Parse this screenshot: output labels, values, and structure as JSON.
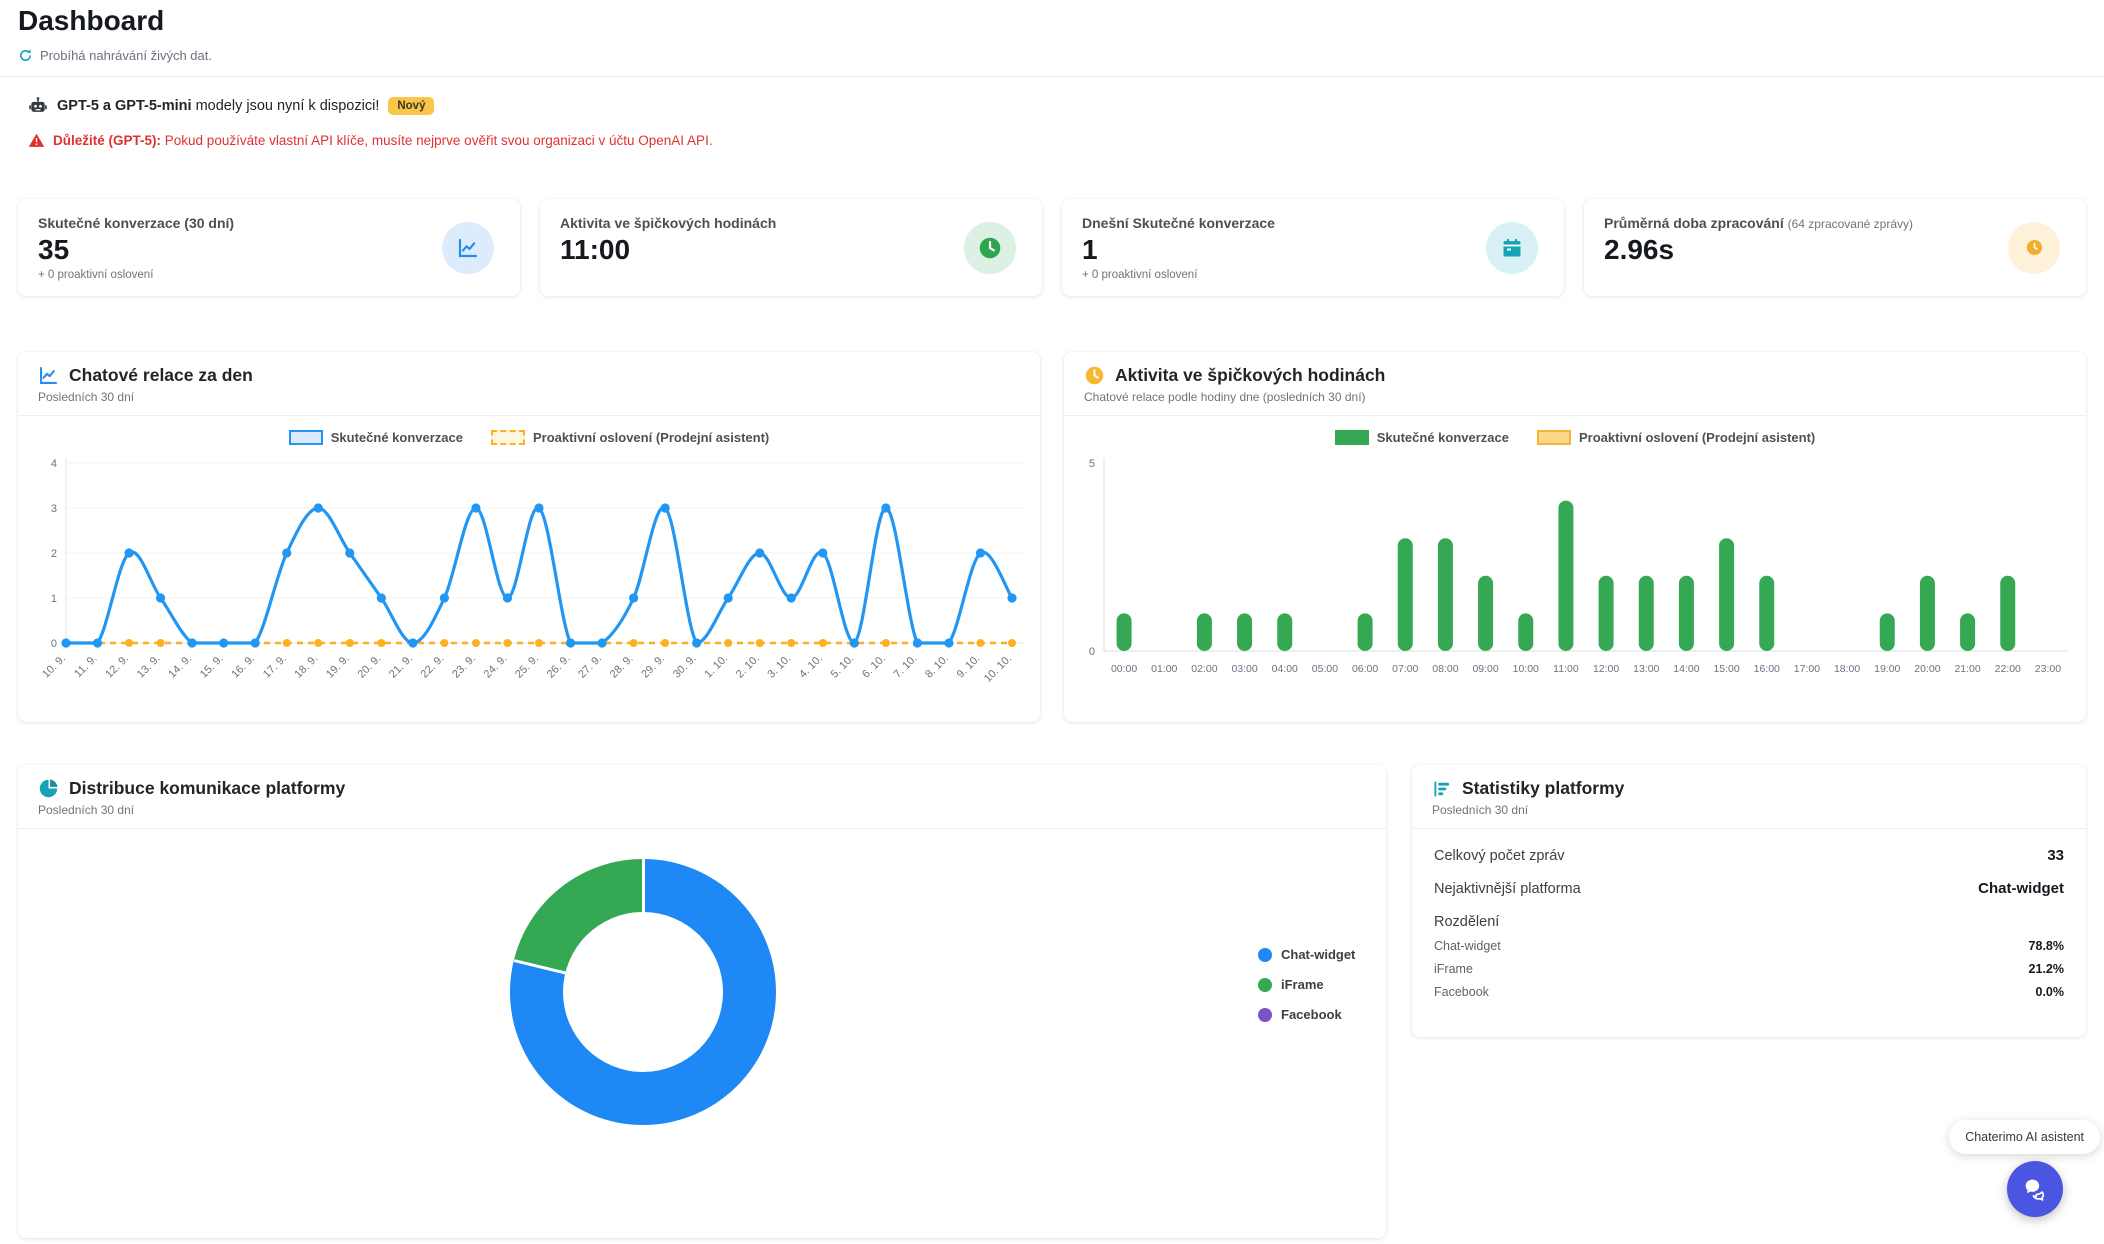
{
  "page": {
    "title": "Dashboard",
    "status_text": "Probíhá nahrávání živých dat."
  },
  "announcement": {
    "highlight": "GPT-5 a GPT-5-mini",
    "text": "modely jsou nyní k dispozici!",
    "badge": "Nový"
  },
  "warning": {
    "highlight": "Důležité (GPT-5):",
    "text": "Pokud používáte vlastní API klíče, musíte nejprve ověřit svou organizaci v účtu OpenAI API."
  },
  "stat_cards": [
    {
      "label": "Skutečné konverzace (30 dní)",
      "value": "35",
      "sub": "+ 0 proaktivní oslovení",
      "icon": "line-chart-icon",
      "accent": "#2b8af0",
      "accent_bg": "#dcecfc"
    },
    {
      "label": "Aktivita ve špičkových hodinách",
      "value": "11:00",
      "sub": "",
      "icon": "clock-icon",
      "accent": "#2ea44f",
      "accent_bg": "#dcf1e3"
    },
    {
      "label": "Dnešní Skutečné konverzace",
      "value": "1",
      "sub": "+ 0 proaktivní oslovení",
      "icon": "calendar-icon",
      "accent": "#17a2b8",
      "accent_bg": "#d8f1f4"
    },
    {
      "label": "Průměrná doba zpracování",
      "label_note": "(64 zpracované zprávy)",
      "value": "2.96s",
      "sub": "",
      "icon": "clock-icon",
      "accent": "#f0ad2e",
      "accent_bg": "#fdf2d9"
    }
  ],
  "chart_data": [
    {
      "type": "line",
      "title": "Chatové relace za den",
      "subtitle": "Posledních 30 dní",
      "categories": [
        "10. 9.",
        "11. 9.",
        "12. 9.",
        "13. 9.",
        "14. 9.",
        "15. 9.",
        "16. 9.",
        "17. 9.",
        "18. 9.",
        "19. 9.",
        "20. 9.",
        "21. 9.",
        "22. 9.",
        "23. 9.",
        "24. 9.",
        "25. 9.",
        "26. 9.",
        "27. 9.",
        "28. 9.",
        "29. 9.",
        "30. 9.",
        "1. 10.",
        "2. 10.",
        "3. 10.",
        "4. 10.",
        "5. 10.",
        "6. 10.",
        "7. 10.",
        "8. 10.",
        "9. 10.",
        "10. 10."
      ],
      "series": [
        {
          "name": "Skutečné konverzace",
          "color": "#2196f3",
          "fill": "#dbeafe",
          "values": [
            0,
            0,
            2,
            1,
            0,
            0,
            0,
            2,
            3,
            2,
            1,
            0,
            1,
            3,
            1,
            3,
            0,
            0,
            1,
            3,
            0,
            1,
            2,
            1,
            2,
            0,
            3,
            0,
            0,
            2,
            1
          ]
        },
        {
          "name": "Proaktivní oslovení (Prodejní asistent)",
          "color": "#ffb020",
          "fill": "#fff6df",
          "dashed": true,
          "values": [
            0,
            0,
            0,
            0,
            0,
            0,
            0,
            0,
            0,
            0,
            0,
            0,
            0,
            0,
            0,
            0,
            0,
            0,
            0,
            0,
            0,
            0,
            0,
            0,
            0,
            0,
            0,
            0,
            0,
            0,
            0
          ]
        }
      ],
      "ylim": [
        0,
        4
      ],
      "yticks": [
        0,
        1,
        2,
        3,
        4
      ],
      "grid": true,
      "legend_position": "top"
    },
    {
      "type": "bar",
      "title": "Aktivita ve špičkových hodinách",
      "subtitle": "Chatové relace podle hodiny dne (posledních 30 dní)",
      "categories": [
        "00:00",
        "01:00",
        "02:00",
        "03:00",
        "04:00",
        "05:00",
        "06:00",
        "07:00",
        "08:00",
        "09:00",
        "10:00",
        "11:00",
        "12:00",
        "13:00",
        "14:00",
        "15:00",
        "16:00",
        "17:00",
        "18:00",
        "19:00",
        "20:00",
        "21:00",
        "22:00",
        "23:00"
      ],
      "series": [
        {
          "name": "Skutečné konverzace",
          "color": "#34a853",
          "values": [
            1,
            0,
            1,
            1,
            1,
            0,
            1,
            3,
            3,
            2,
            1,
            4,
            2,
            2,
            2,
            3,
            2,
            0,
            0,
            1,
            2,
            1,
            2,
            0
          ]
        },
        {
          "name": "Proaktivní oslovení (Prodejní asistent)",
          "color": "#f3b33d",
          "fill": "#fcd98a",
          "values": [
            0,
            0,
            0,
            0,
            0,
            0,
            0,
            0,
            0,
            0,
            0,
            0,
            0,
            0,
            0,
            0,
            0,
            0,
            0,
            0,
            0,
            0,
            0,
            0
          ]
        }
      ],
      "ylim": [
        0,
        5
      ],
      "yticks": [
        0,
        5
      ],
      "grid": false,
      "legend_position": "top"
    },
    {
      "type": "pie",
      "title": "Distribuce komunikace platformy",
      "subtitle": "Posledních 30 dní",
      "labels": [
        "Chat-widget",
        "iFrame",
        "Facebook"
      ],
      "values": [
        78.8,
        21.2,
        0.0
      ],
      "colors": [
        "#1e88f5",
        "#34a853",
        "#7c52c7"
      ],
      "legend_position": "right"
    }
  ],
  "platform_stats": {
    "title": "Statistiky platformy",
    "subtitle": "Posledních 30 dní",
    "rows": [
      {
        "label": "Celkový počet zpráv",
        "value": "33"
      },
      {
        "label": "Nejaktivnější platforma",
        "value": "Chat-widget"
      }
    ],
    "breakdown_label": "Rozdělení",
    "breakdown": [
      {
        "label": "Chat-widget",
        "value": "78.8%"
      },
      {
        "label": "iFrame",
        "value": "21.2%"
      },
      {
        "label": "Facebook",
        "value": "0.0%"
      }
    ]
  },
  "chat_widget": {
    "label": "Chaterimo AI asistent"
  }
}
